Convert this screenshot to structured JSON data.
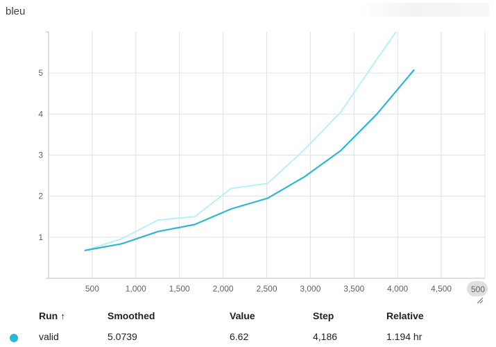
{
  "card": {
    "title": "bleu"
  },
  "chart_data": {
    "type": "line",
    "xlim": [
      0,
      5000
    ],
    "ylim": [
      0,
      6
    ],
    "x_ticks": [
      500,
      1000,
      1500,
      2000,
      2500,
      3000,
      3500,
      4000,
      4500
    ],
    "x_tick_labels": [
      "500",
      "1,000",
      "1,500",
      "2,000",
      "2,500",
      "3,000",
      "3,500",
      "4,000",
      "4,500"
    ],
    "x_overflow_label": "500",
    "y_ticks": [
      1,
      2,
      3,
      4,
      5
    ],
    "y_tick_labels": [
      "1",
      "2",
      "3",
      "4",
      "5"
    ],
    "grid": true,
    "series": [
      {
        "name": "valid",
        "role": "raw",
        "color": "#b8f0fa",
        "x": [
          419,
          837,
          1256,
          1674,
          2093,
          2511,
          2930,
          3348,
          3767,
          4186
        ],
        "y": [
          0.68,
          0.96,
          1.42,
          1.5,
          2.19,
          2.31,
          3.13,
          4.05,
          5.35,
          6.62
        ]
      },
      {
        "name": "valid",
        "role": "smoothed",
        "color": "#2cb7d5",
        "x": [
          419,
          837,
          1256,
          1674,
          2093,
          2511,
          2930,
          3348,
          3767,
          4186
        ],
        "y": [
          0.68,
          0.84,
          1.14,
          1.31,
          1.69,
          1.95,
          2.47,
          3.11,
          4.01,
          5.07
        ]
      }
    ]
  },
  "table": {
    "headers": {
      "run": "Run",
      "sort_arrow": "↑",
      "smoothed": "Smoothed",
      "value": "Value",
      "step": "Step",
      "relative": "Relative"
    },
    "rows": [
      {
        "color": "#2cb7d5",
        "run": "valid",
        "smoothed": "5.0739",
        "value": "6.62",
        "step": "4,186",
        "relative": "1.194 hr"
      }
    ]
  }
}
